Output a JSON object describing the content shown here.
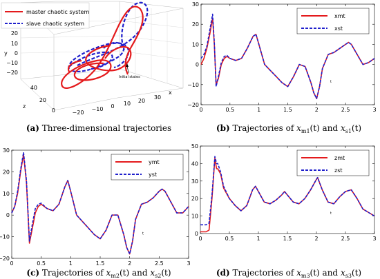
{
  "chart_data": [
    {
      "type": "line",
      "panel": "a",
      "caption_letter": "(a)",
      "caption_text": "Three-dimensional trajectories",
      "xlabel": "x",
      "ylabel": "y",
      "zlabel": "z",
      "x_ticks": [
        "−20",
        "−10",
        "0",
        "10",
        "20",
        "30"
      ],
      "y_ticks": [
        "−20",
        "−10",
        "0",
        "10",
        "20",
        "30"
      ],
      "z_ticks": [
        "0",
        "20",
        "40",
        "60"
      ],
      "annotation": "Initial states",
      "series": [
        {
          "name": "master chaotic system",
          "color": "#e41a1c",
          "style": "solid"
        },
        {
          "name": "slave chaotic system",
          "color": "#1f1fcc",
          "style": "dashed"
        }
      ]
    },
    {
      "type": "line",
      "panel": "b",
      "caption_letter": "(b)",
      "caption_pre": "Trajectories of",
      "caption_v1": "x",
      "caption_s1": "m1",
      "caption_arg1": "(t)",
      "caption_and": "and",
      "caption_v2": "x",
      "caption_s2": "s1",
      "caption_arg2": "(t)",
      "xlabel": "t",
      "xlim": [
        0,
        3
      ],
      "ylim": [
        -20,
        30
      ],
      "x_ticks": [
        "0",
        "0.5",
        "1",
        "1.5",
        "2",
        "2.5",
        "3"
      ],
      "y_ticks": [
        "−20",
        "−10",
        "0",
        "10",
        "20",
        "30"
      ],
      "x": [
        0,
        0.05,
        0.1,
        0.15,
        0.2,
        0.23,
        0.26,
        0.3,
        0.35,
        0.4,
        0.45,
        0.5,
        0.6,
        0.7,
        0.8,
        0.9,
        0.95,
        1.0,
        1.1,
        1.2,
        1.3,
        1.4,
        1.5,
        1.6,
        1.7,
        1.8,
        1.9,
        1.95,
        2.0,
        2.05,
        2.1,
        2.2,
        2.3,
        2.4,
        2.5,
        2.55,
        2.6,
        2.7,
        2.8,
        2.9,
        3.0
      ],
      "series": [
        {
          "name": "xmt",
          "color": "#e41a1c",
          "style": "solid",
          "values": [
            0,
            3,
            8,
            15,
            23,
            10,
            -10,
            -7,
            0,
            3,
            4,
            3,
            2,
            3,
            8,
            14,
            15,
            10,
            0,
            -3,
            -6,
            -9,
            -11,
            -6,
            0,
            -1,
            -9,
            -14,
            -17,
            -11,
            -2,
            5,
            6,
            8,
            10,
            11,
            10,
            5,
            0,
            1,
            3
          ]
        },
        {
          "name": "xst",
          "color": "#1f1fcc",
          "style": "dashed",
          "values": [
            3,
            5,
            9,
            17,
            25,
            11,
            -11,
            -6,
            1,
            4,
            4.5,
            3,
            2,
            3,
            8,
            14,
            15,
            10,
            0,
            -3,
            -6,
            -9,
            -11,
            -6,
            0,
            -1,
            -9,
            -14,
            -17,
            -11,
            -2,
            5,
            6,
            8,
            10,
            11,
            10,
            5,
            0,
            1,
            3
          ]
        }
      ]
    },
    {
      "type": "line",
      "panel": "c",
      "caption_letter": "(c)",
      "caption_pre": "Trajectories of",
      "caption_v1": "x",
      "caption_s1": "m2",
      "caption_arg1": "(t)",
      "caption_and": "and",
      "caption_v2": "x",
      "caption_s2": "s2",
      "caption_arg2": "(t)",
      "xlabel": "t",
      "xlim": [
        0,
        3
      ],
      "ylim": [
        -20,
        30
      ],
      "x_ticks": [
        "0",
        "0.5",
        "1",
        "1.5",
        "2",
        "2.5",
        "3"
      ],
      "y_ticks": [
        "−20",
        "−10",
        "0",
        "10",
        "20",
        "30"
      ],
      "x": [
        0,
        0.05,
        0.1,
        0.15,
        0.2,
        0.25,
        0.3,
        0.35,
        0.4,
        0.45,
        0.5,
        0.6,
        0.7,
        0.8,
        0.9,
        0.95,
        1.0,
        1.1,
        1.2,
        1.3,
        1.4,
        1.5,
        1.6,
        1.7,
        1.8,
        1.9,
        1.95,
        2.0,
        2.05,
        2.1,
        2.2,
        2.3,
        2.4,
        2.5,
        2.55,
        2.6,
        2.7,
        2.8,
        2.9,
        3.0
      ],
      "series": [
        {
          "name": "ymt",
          "color": "#e41a1c",
          "style": "solid",
          "values": [
            1,
            4,
            10,
            20,
            28,
            15,
            -13,
            -6,
            1,
            4,
            5,
            3,
            2,
            5,
            13,
            16,
            11,
            0,
            -3,
            -6,
            -9,
            -11,
            -7,
            0,
            0,
            -9,
            -15,
            -18,
            -12,
            -2,
            5,
            6,
            8,
            11,
            12,
            11,
            6,
            1,
            1,
            4
          ]
        },
        {
          "name": "yst",
          "color": "#1f1fcc",
          "style": "dashed",
          "values": [
            1,
            4,
            11,
            21,
            29,
            16,
            -12,
            -4,
            3,
            5,
            5.5,
            3,
            2,
            5,
            13,
            16,
            11,
            0,
            -3,
            -6,
            -9,
            -11,
            -7,
            0,
            0,
            -9,
            -15,
            -18,
            -12,
            -2,
            5,
            6,
            8,
            11,
            12,
            11,
            6,
            1,
            1,
            4
          ]
        }
      ]
    },
    {
      "type": "line",
      "panel": "d",
      "caption_letter": "(d)",
      "caption_pre": "Trajectories of",
      "caption_v1": "x",
      "caption_s1": "m3",
      "caption_arg1": "(t)",
      "caption_and": "and",
      "caption_v2": "x",
      "caption_s2": "s3",
      "caption_arg2": "(t)",
      "xlabel": "t",
      "xlim": [
        0,
        3
      ],
      "ylim": [
        0,
        50
      ],
      "x_ticks": [
        "0",
        "0.5",
        "1",
        "1.5",
        "2",
        "2.5",
        "3"
      ],
      "y_ticks": [
        "0",
        "10",
        "20",
        "30",
        "40",
        "50"
      ],
      "x": [
        0,
        0.1,
        0.15,
        0.2,
        0.25,
        0.28,
        0.3,
        0.35,
        0.4,
        0.5,
        0.6,
        0.7,
        0.8,
        0.9,
        0.95,
        1.0,
        1.1,
        1.2,
        1.3,
        1.4,
        1.45,
        1.5,
        1.6,
        1.7,
        1.8,
        1.9,
        2.0,
        2.02,
        2.1,
        2.2,
        2.3,
        2.4,
        2.5,
        2.6,
        2.7,
        2.8,
        2.9,
        3.0
      ],
      "series": [
        {
          "name": "zmt",
          "color": "#e41a1c",
          "style": "solid",
          "values": [
            1,
            1,
            2,
            20,
            43,
            37,
            37,
            34,
            26,
            20,
            16,
            13,
            16,
            25,
            27,
            24,
            18,
            17,
            19,
            22,
            24,
            22,
            18,
            17,
            20,
            25,
            31,
            32,
            25,
            18,
            17,
            21,
            24,
            25,
            20,
            14,
            12,
            10
          ]
        },
        {
          "name": "zst",
          "color": "#1f1fcc",
          "style": "dashed",
          "values": [
            5,
            5,
            6,
            22,
            44,
            40,
            40,
            35,
            27,
            20,
            16,
            13,
            16,
            25,
            27,
            24,
            18,
            17,
            19,
            22,
            24,
            22,
            18,
            17,
            20,
            25,
            31,
            32,
            25,
            18,
            17,
            21,
            24,
            25,
            20,
            14,
            12,
            10
          ]
        }
      ]
    }
  ]
}
